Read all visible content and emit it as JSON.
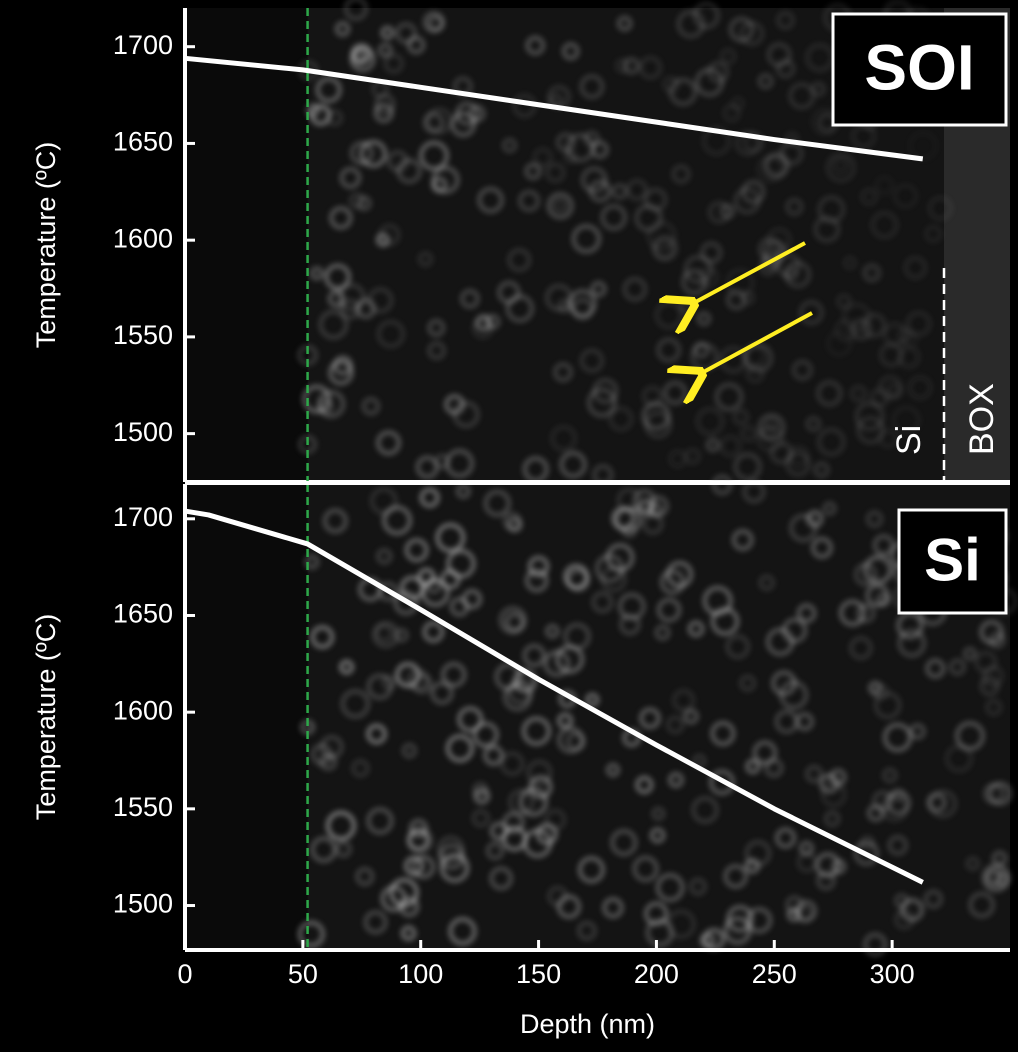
{
  "chart_data": [
    {
      "type": "line",
      "label": "SOI",
      "y_label": "Temperature  (ºC)",
      "x": [
        0,
        50,
        100,
        150,
        200,
        250,
        313
      ],
      "values": [
        1694,
        1688,
        1679,
        1670,
        1661,
        1652,
        1642
      ],
      "color": "#ffffff",
      "xlim": [
        0,
        350
      ],
      "ylim": [
        1475,
        1720
      ],
      "yticks": [
        1500,
        1550,
        1600,
        1650,
        1700
      ],
      "marker_x": 52,
      "marker_color": "#2ea84a",
      "interface_x": 322,
      "layer_labels": [
        "Si",
        "BOX"
      ]
    },
    {
      "type": "line",
      "label": "Si",
      "y_label": "Temperature  (ºC)",
      "x_label": "Depth (nm)",
      "x": [
        0,
        10,
        52,
        100,
        150,
        200,
        250,
        313
      ],
      "values": [
        1704,
        1702,
        1687,
        1653,
        1617,
        1583,
        1550,
        1512
      ],
      "color": "#ffffff",
      "xlim": [
        0,
        350
      ],
      "ylim": [
        1477,
        1718
      ],
      "yticks": [
        1500,
        1550,
        1600,
        1650,
        1700
      ],
      "xticks": [
        0,
        50,
        100,
        150,
        200,
        250,
        300
      ],
      "marker_x": 52,
      "marker_color": "#2ea84a"
    }
  ]
}
